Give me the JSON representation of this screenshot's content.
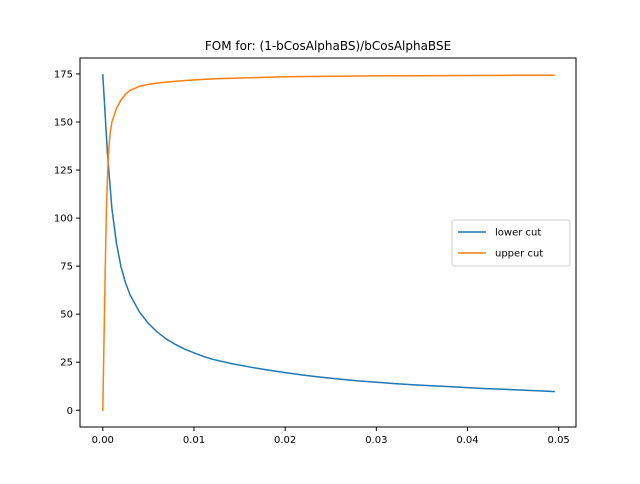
{
  "chart_data": {
    "type": "line",
    "title": "FOM for: (1-bCosAlphaBS)/bCosAlphaBSE",
    "xlabel": "",
    "ylabel": "",
    "xlim": [
      -0.0025,
      0.0519
    ],
    "ylim": [
      -8.7,
      183.3
    ],
    "xticks": [
      0.0,
      0.01,
      0.02,
      0.03,
      0.04,
      0.05
    ],
    "xtick_labels": [
      "0.00",
      "0.01",
      "0.02",
      "0.03",
      "0.04",
      "0.05"
    ],
    "yticks": [
      0,
      25,
      50,
      75,
      100,
      125,
      150,
      175
    ],
    "ytick_labels": [
      "0",
      "25",
      "50",
      "75",
      "100",
      "125",
      "150",
      "175"
    ],
    "grid": false,
    "legend_position": "center-right",
    "series": [
      {
        "name": "lower cut",
        "color": "#1f77b4",
        "x": [
          0.0,
          0.0005,
          0.001,
          0.0015,
          0.002,
          0.0025,
          0.003,
          0.004,
          0.005,
          0.006,
          0.007,
          0.008,
          0.009,
          0.01,
          0.011,
          0.012,
          0.014,
          0.016,
          0.018,
          0.02,
          0.022,
          0.024,
          0.026,
          0.028,
          0.03,
          0.032,
          0.034,
          0.036,
          0.038,
          0.04,
          0.042,
          0.044,
          0.046,
          0.048,
          0.0495
        ],
        "y": [
          174.5,
          134,
          105,
          86.8,
          74.6,
          66.2,
          60,
          51.3,
          45.2,
          40.6,
          37,
          34.2,
          31.8,
          29.9,
          28.1,
          26.6,
          24.4,
          22.6,
          21,
          19.6,
          18.3,
          17.2,
          16.2,
          15.3,
          14.6,
          13.9,
          13.3,
          12.8,
          12.3,
          11.8,
          11.3,
          10.9,
          10.5,
          10.1,
          9.7
        ]
      },
      {
        "name": "upper cut",
        "color": "#ff7f0e",
        "x": [
          0.0,
          0.0002,
          0.0004,
          0.0006,
          0.0008,
          0.001,
          0.0015,
          0.002,
          0.0025,
          0.003,
          0.004,
          0.005,
          0.006,
          0.008,
          0.01,
          0.012,
          0.015,
          0.02,
          0.025,
          0.03,
          0.035,
          0.04,
          0.045,
          0.0495
        ],
        "y": [
          0,
          55,
          105,
          133,
          144,
          150,
          157,
          161.5,
          164.5,
          166.5,
          168.5,
          169.6,
          170.3,
          171.2,
          171.9,
          172.4,
          172.9,
          173.5,
          173.8,
          174,
          174.1,
          174.2,
          174.3,
          174.3
        ]
      }
    ]
  }
}
